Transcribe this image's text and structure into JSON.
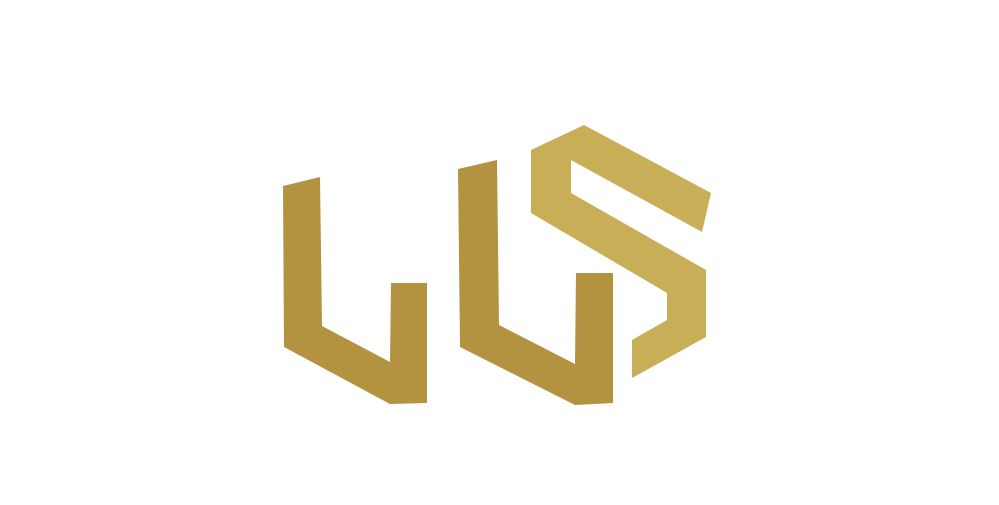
{
  "logo": {
    "mark_name": "LLS monogram",
    "letters": [
      "L",
      "L",
      "S"
    ],
    "colors": {
      "background": "#ffffff",
      "letter_l_fill": "#b39340",
      "letter_s_fill": "#c8af57"
    }
  }
}
